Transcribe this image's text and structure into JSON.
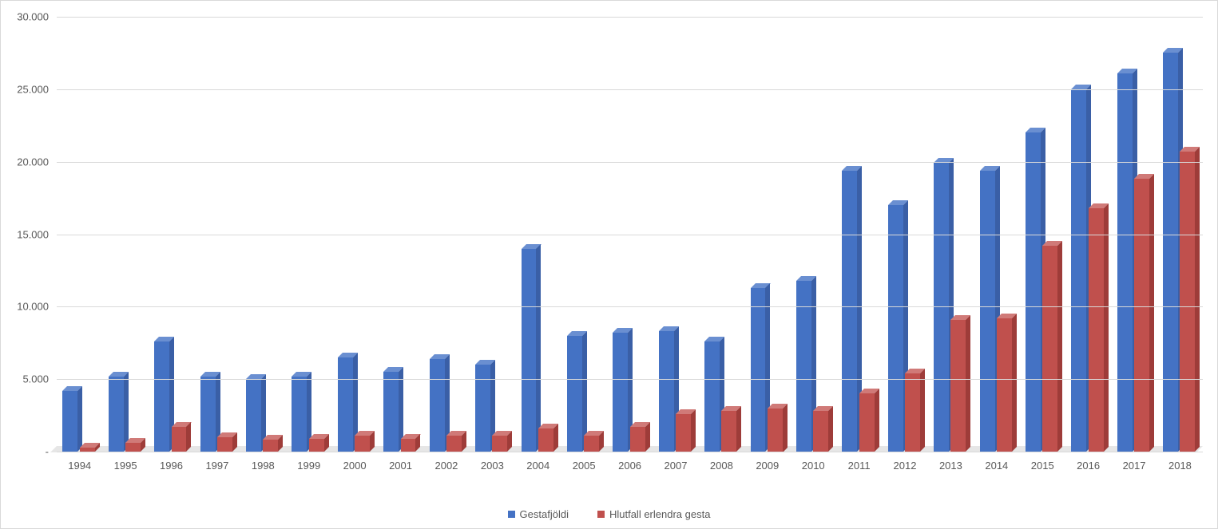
{
  "chart": {
    "type": "bar",
    "categories": [
      "1994",
      "1995",
      "1996",
      "1997",
      "1998",
      "1999",
      "2000",
      "2001",
      "2002",
      "2003",
      "2004",
      "2005",
      "2006",
      "2007",
      "2008",
      "2009",
      "2010",
      "2011",
      "2012",
      "2013",
      "2014",
      "2015",
      "2016",
      "2017",
      "2018"
    ],
    "series": [
      {
        "name": "Gestafjöldi",
        "color": "#4472c4",
        "color_top": "#6a8fd1",
        "color_side": "#3a5fa6",
        "values": [
          4200,
          5200,
          7600,
          5200,
          5000,
          5200,
          6500,
          5500,
          6400,
          6000,
          14000,
          8000,
          8200,
          8300,
          7600,
          11300,
          11800,
          19400,
          17000,
          19900,
          19400,
          22000,
          25000,
          26100,
          27500
        ]
      },
      {
        "name": "Hlutfall erlendra gesta",
        "color": "#c0504d",
        "color_top": "#d07a78",
        "color_side": "#9e3c39",
        "values": [
          300,
          600,
          1700,
          1000,
          800,
          900,
          1100,
          900,
          1100,
          1100,
          1600,
          1100,
          1700,
          2600,
          2800,
          3000,
          2800,
          4000,
          5400,
          9100,
          9200,
          14200,
          16800,
          18800,
          20700
        ]
      }
    ],
    "ylim": [
      0,
      30000
    ],
    "yticks": [
      0,
      5000,
      10000,
      15000,
      20000,
      25000,
      30000
    ],
    "ytick_labels": [
      "-",
      "5.000",
      "10.000",
      "15.000",
      "20.000",
      "25.000",
      "30.000"
    ],
    "grid_color": "#d9d9d9",
    "bg_color": "#ffffff",
    "label_color": "#595959",
    "label_fontsize": 13
  }
}
